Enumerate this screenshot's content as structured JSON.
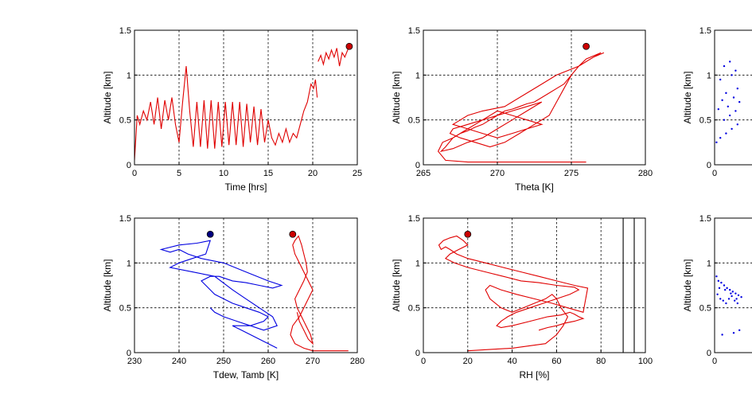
{
  "chart_data": [
    {
      "type": "line",
      "xlabel": "Time [hrs]",
      "ylabel": "Altitude [km]",
      "xlim": [
        0,
        25
      ],
      "ylim": [
        0,
        1.5
      ],
      "xticks": [
        "0",
        "5",
        "10",
        "15",
        "20",
        "25"
      ],
      "yticks": [
        "0",
        "0.5",
        "1",
        "1.5"
      ],
      "grid": true,
      "series": [
        {
          "color": "#e00000",
          "x": [
            0,
            0.3,
            0.6,
            1,
            1.4,
            1.8,
            2.2,
            2.6,
            3,
            3.4,
            3.8,
            4.2,
            4.6,
            5,
            5.4,
            5.8,
            6.2,
            6.6,
            7,
            7.4,
            7.8,
            8.2,
            8.6,
            9,
            9.4,
            9.8,
            10.2,
            10.6,
            11,
            11.4,
            11.8,
            12.2,
            12.6,
            13,
            13.4,
            13.8,
            14.2,
            14.6,
            15,
            15.4,
            15.8,
            16.2,
            16.6,
            17,
            17.4,
            17.8,
            18.2,
            18.6,
            19,
            19.4,
            19.8,
            20.1,
            20.3,
            20.5
          ],
          "y": [
            0.05,
            0.55,
            0.45,
            0.6,
            0.5,
            0.7,
            0.45,
            0.75,
            0.4,
            0.72,
            0.5,
            0.75,
            0.45,
            0.25,
            0.7,
            1.1,
            0.6,
            0.2,
            0.7,
            0.2,
            0.72,
            0.18,
            0.72,
            0.18,
            0.7,
            0.2,
            0.7,
            0.22,
            0.7,
            0.22,
            0.7,
            0.2,
            0.68,
            0.25,
            0.65,
            0.22,
            0.62,
            0.25,
            0.5,
            0.3,
            0.22,
            0.35,
            0.25,
            0.4,
            0.25,
            0.35,
            0.3,
            0.45,
            0.6,
            0.7,
            0.9,
            0.85,
            0.95,
            0.75
          ]
        },
        {
          "color": "#e00000",
          "x": [
            20.6,
            20.9,
            21.2,
            21.5,
            21.8,
            22.1,
            22.4,
            22.7,
            23,
            23.3,
            23.6,
            24
          ],
          "y": [
            1.15,
            1.22,
            1.12,
            1.25,
            1.18,
            1.28,
            1.2,
            1.3,
            1.1,
            1.25,
            1.2,
            1.3
          ]
        }
      ],
      "markers": [
        {
          "x": 24.1,
          "y": 1.32,
          "color": "#cc0000"
        }
      ]
    },
    {
      "type": "line",
      "xlabel": "Theta [K]",
      "ylabel": "Altitude [km]",
      "xlim": [
        265,
        280
      ],
      "ylim": [
        0,
        1.5
      ],
      "xticks": [
        "265",
        "270",
        "275",
        "280"
      ],
      "yticks": [
        "0",
        "0.5",
        "1",
        "1.5"
      ],
      "grid": true,
      "series": [
        {
          "color": "#e00000",
          "x": [
            276,
            268,
            266.5,
            266,
            266.3,
            267,
            267.5,
            268,
            268.5,
            269,
            269.5,
            270,
            270.5,
            271,
            271.5,
            272,
            272.5,
            273,
            273.5,
            274,
            274.5,
            275,
            275.5,
            276,
            276.5,
            277,
            276,
            275.5,
            274,
            273,
            272,
            271,
            270.5,
            269,
            268,
            267.5,
            267,
            268,
            269,
            270,
            271,
            272,
            273,
            272,
            271,
            270,
            269,
            268,
            267,
            266.5,
            266.2,
            267,
            268,
            269,
            270,
            271,
            272,
            273,
            272,
            271,
            270,
            269,
            268,
            267,
            266.8,
            267.5,
            268.5,
            269.5,
            270.5,
            271.5,
            272.5,
            273.5,
            274,
            274.5,
            275,
            275.5,
            276,
            276.5,
            277.2
          ],
          "y": [
            0.03,
            0.03,
            0.05,
            0.15,
            0.25,
            0.3,
            0.35,
            0.38,
            0.42,
            0.45,
            0.5,
            0.55,
            0.6,
            0.62,
            0.65,
            0.68,
            0.7,
            0.75,
            0.8,
            0.85,
            0.9,
            1.0,
            1.1,
            1.15,
            1.2,
            1.25,
            1.18,
            1.1,
            1.0,
            0.9,
            0.8,
            0.7,
            0.65,
            0.6,
            0.55,
            0.5,
            0.45,
            0.4,
            0.35,
            0.3,
            0.35,
            0.4,
            0.45,
            0.5,
            0.55,
            0.6,
            0.5,
            0.4,
            0.3,
            0.2,
            0.15,
            0.18,
            0.25,
            0.3,
            0.4,
            0.5,
            0.6,
            0.7,
            0.65,
            0.6,
            0.55,
            0.5,
            0.45,
            0.4,
            0.35,
            0.3,
            0.25,
            0.2,
            0.25,
            0.35,
            0.45,
            0.55,
            0.7,
            0.85,
            1.0,
            1.1,
            1.15,
            1.2,
            1.25
          ]
        }
      ],
      "markers": [
        {
          "x": 276,
          "y": 1.32,
          "color": "#cc0000"
        }
      ]
    },
    {
      "type": "scatter",
      "xlabel": "",
      "ylabel": "Altitude [km]",
      "xlim": [
        0,
        10
      ],
      "ylim": [
        0,
        1.5
      ],
      "xticks": [
        "0"
      ],
      "yticks": [
        "0",
        "0.5",
        "1",
        "1.5"
      ],
      "grid": true,
      "series": [
        {
          "color": "#0000e0",
          "x": [
            0.1,
            0.3,
            0.6,
            0.9,
            1.2,
            0.5,
            0.8,
            1.1,
            0.2,
            0.7,
            1.3,
            0.4,
            1.0,
            0.6,
            1.2,
            0.3,
            0.9,
            1.1,
            0.5,
            0.8
          ],
          "y": [
            0.25,
            0.3,
            0.35,
            0.4,
            0.45,
            0.5,
            0.55,
            0.6,
            0.62,
            0.65,
            0.7,
            0.72,
            0.75,
            0.8,
            0.85,
            0.95,
            1.0,
            1.05,
            1.1,
            1.15
          ]
        }
      ]
    },
    {
      "type": "line",
      "xlabel": "Tdew, Tamb [K]",
      "ylabel": "Altitude [km]",
      "xlim": [
        230,
        280
      ],
      "ylim": [
        0,
        1.5
      ],
      "xticks": [
        "230",
        "240",
        "250",
        "260",
        "270",
        "280"
      ],
      "yticks": [
        "0",
        "0.5",
        "1",
        "1.5"
      ],
      "grid": true,
      "series": [
        {
          "color": "#0000e0",
          "x": [
            262,
            254,
            252,
            256,
            259,
            260,
            258,
            255,
            252,
            250,
            248,
            247,
            246,
            245,
            247,
            249,
            252,
            255,
            258,
            261,
            263,
            260,
            255,
            250,
            245,
            242,
            240,
            238,
            236,
            240,
            244,
            247,
            246,
            243,
            240,
            238,
            243,
            248,
            252,
            255,
            258,
            261,
            262,
            259,
            256,
            253,
            250,
            248,
            247
          ],
          "y": [
            0.05,
            0.25,
            0.3,
            0.3,
            0.35,
            0.4,
            0.45,
            0.5,
            0.55,
            0.6,
            0.65,
            0.7,
            0.75,
            0.8,
            0.85,
            0.85,
            0.8,
            0.78,
            0.75,
            0.72,
            0.75,
            0.8,
            0.9,
            1.0,
            1.05,
            1.1,
            1.15,
            1.12,
            1.15,
            1.2,
            1.22,
            1.25,
            1.1,
            1.05,
            1.0,
            0.95,
            0.9,
            0.85,
            0.7,
            0.6,
            0.5,
            0.4,
            0.3,
            0.25,
            0.3,
            0.35,
            0.4,
            0.45,
            0.5
          ]
        },
        {
          "color": "#e00000",
          "x": [
            278,
            270,
            268,
            266,
            265,
            265.5,
            267,
            268,
            269,
            270,
            269,
            268,
            267,
            266,
            265.5,
            266,
            266.8,
            267.5,
            268,
            268.5,
            268.8,
            268,
            267,
            266,
            266.5,
            267.5,
            268.5,
            269.5,
            270,
            269,
            268,
            267,
            266.5
          ],
          "y": [
            0.02,
            0.02,
            0.05,
            0.1,
            0.2,
            0.3,
            0.4,
            0.5,
            0.6,
            0.7,
            0.8,
            0.9,
            1.0,
            1.1,
            1.2,
            1.25,
            1.3,
            1.2,
            1.1,
            1.0,
            0.9,
            0.8,
            0.7,
            0.6,
            0.5,
            0.4,
            0.3,
            0.2,
            0.1,
            0.15,
            0.25,
            0.35,
            0.45
          ]
        }
      ],
      "markers": [
        {
          "x": 247,
          "y": 1.32,
          "color": "#000080"
        },
        {
          "x": 265.5,
          "y": 1.32,
          "color": "#cc0000"
        }
      ]
    },
    {
      "type": "line",
      "xlabel": "RH [%]",
      "ylabel": "Altitude [km]",
      "xlim": [
        0,
        100
      ],
      "ylim": [
        0,
        1.5
      ],
      "xticks": [
        "0",
        "20",
        "40",
        "60",
        "80",
        "100"
      ],
      "yticks": [
        "0",
        "0.5",
        "1",
        "1.5"
      ],
      "grid": true,
      "series": [
        {
          "color": "#e00000",
          "x": [
            20,
            40,
            55,
            60,
            63,
            65,
            62,
            60,
            58,
            55,
            50,
            45,
            40,
            35,
            30,
            28,
            30,
            35,
            42,
            50,
            58,
            65,
            72,
            74,
            68,
            60,
            52,
            44,
            36,
            28,
            20,
            15,
            12,
            10,
            8,
            7,
            9,
            12,
            15,
            18,
            20,
            16,
            12,
            10,
            14,
            20,
            28,
            36,
            44,
            52,
            60,
            68,
            70,
            66,
            60,
            54,
            48,
            42,
            38,
            35,
            33,
            35,
            40,
            48,
            56,
            62,
            66,
            68,
            70,
            72,
            68,
            64,
            60,
            56,
            52
          ],
          "y": [
            0.02,
            0.05,
            0.1,
            0.2,
            0.3,
            0.4,
            0.5,
            0.6,
            0.65,
            0.6,
            0.55,
            0.5,
            0.45,
            0.5,
            0.6,
            0.7,
            0.75,
            0.7,
            0.65,
            0.6,
            0.55,
            0.5,
            0.45,
            0.72,
            0.75,
            0.8,
            0.85,
            0.9,
            0.95,
            1.0,
            1.05,
            1.1,
            1.15,
            1.18,
            1.15,
            1.2,
            1.25,
            1.28,
            1.3,
            1.25,
            1.2,
            1.15,
            1.1,
            1.05,
            1.0,
            0.95,
            0.9,
            0.85,
            0.8,
            0.78,
            0.75,
            0.73,
            0.7,
            0.65,
            0.6,
            0.55,
            0.5,
            0.45,
            0.4,
            0.35,
            0.3,
            0.28,
            0.3,
            0.35,
            0.4,
            0.42,
            0.45,
            0.43,
            0.4,
            0.38,
            0.35,
            0.33,
            0.3,
            0.28,
            0.25
          ]
        },
        {
          "color": "#000000",
          "x": [
            90,
            90
          ],
          "y": [
            0,
            1.5
          ]
        },
        {
          "color": "#000000",
          "x": [
            95,
            95
          ],
          "y": [
            0,
            1.5
          ]
        }
      ],
      "markers": [
        {
          "x": 20,
          "y": 1.32,
          "color": "#cc0000"
        }
      ]
    },
    {
      "type": "scatter",
      "xlabel": "",
      "ylabel": "Altitude [km]",
      "xlim": [
        0,
        10
      ],
      "ylim": [
        0,
        1.5
      ],
      "xticks": [
        "0"
      ],
      "yticks": [
        "0",
        "0.5",
        "1",
        "1.5"
      ],
      "grid": true,
      "series": [
        {
          "color": "#0000e0",
          "x": [
            0.1,
            0.2,
            0.35,
            0.5,
            0.65,
            0.8,
            0.95,
            1.1,
            1.25,
            1.4,
            0.15,
            0.3,
            0.45,
            0.6,
            0.75,
            0.9,
            1.05,
            1.2,
            0.25,
            0.55,
            0.85,
            1.15,
            0.4,
            1.0,
            1.3
          ],
          "y": [
            0.85,
            0.8,
            0.78,
            0.75,
            0.72,
            0.7,
            0.68,
            0.66,
            0.64,
            0.62,
            0.65,
            0.6,
            0.58,
            0.55,
            0.6,
            0.63,
            0.58,
            0.55,
            0.72,
            0.7,
            0.66,
            0.6,
            0.2,
            0.22,
            0.25
          ]
        }
      ]
    }
  ]
}
